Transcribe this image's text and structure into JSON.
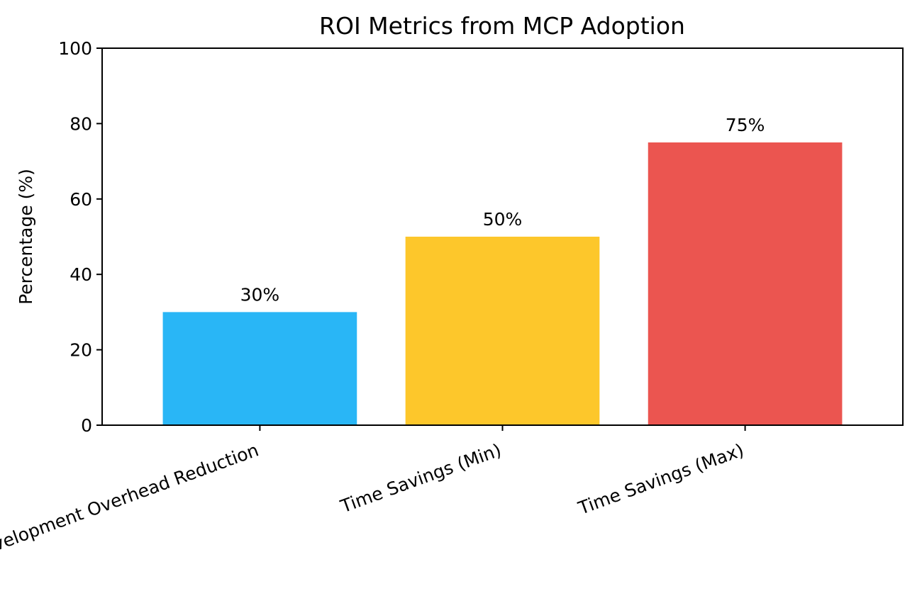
{
  "chart_data": {
    "type": "bar",
    "title": "ROI Metrics from MCP Adoption",
    "xlabel": "",
    "ylabel": "Percentage (%)",
    "categories": [
      "Development Overhead Reduction",
      "Time Savings (Min)",
      "Time Savings (Max)"
    ],
    "values": [
      30,
      50,
      75
    ],
    "data_labels": [
      "30%",
      "50%",
      "75%"
    ],
    "colors": [
      "#29b6f6",
      "#fdc72b",
      "#eb5550"
    ],
    "ylim": [
      0,
      100
    ],
    "yticks": [
      0,
      20,
      40,
      60,
      80,
      100
    ],
    "grid": false,
    "legend": "none"
  }
}
